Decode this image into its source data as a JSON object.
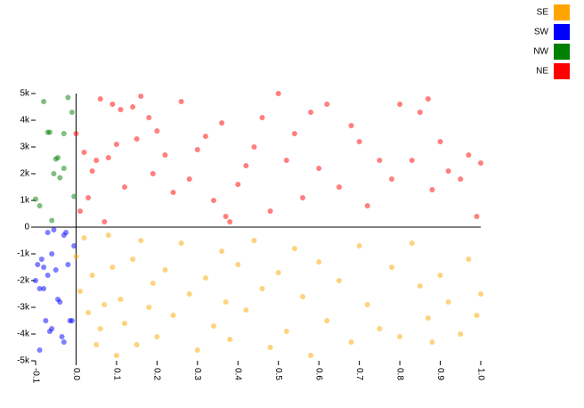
{
  "chart_data": {
    "type": "scatter",
    "xlim": [
      -0.1,
      1.0
    ],
    "xticks": [
      -0.1,
      {
        "value": 0,
        "label": "0.0"
      },
      0.1,
      0.2,
      0.3,
      0.4,
      0.5,
      0.6,
      0.7,
      0.8,
      0.9,
      {
        "value": 1,
        "label": "1.0"
      }
    ],
    "ylim": [
      -5000,
      5000
    ],
    "yticks": [
      {
        "value": -5000,
        "label": "-5k"
      },
      {
        "value": -4000,
        "label": "-4k"
      },
      {
        "value": -3000,
        "label": "-3k"
      },
      {
        "value": -2000,
        "label": "-2k"
      },
      {
        "value": -1000,
        "label": "-1k"
      },
      0,
      {
        "value": 1000,
        "label": "1k"
      },
      {
        "value": 2000,
        "label": "2k"
      },
      {
        "value": 3000,
        "label": "3k"
      },
      {
        "value": 4000,
        "label": "4k"
      },
      {
        "value": 5000,
        "label": "5k"
      }
    ],
    "series": [
      {
        "name": "SE",
        "color": "#ffa500",
        "x": [
          0.0,
          0.01,
          0.02,
          0.03,
          0.04,
          0.05,
          0.06,
          0.07,
          0.08,
          0.09,
          0.1,
          0.11,
          0.12,
          0.14,
          0.15,
          0.16,
          0.18,
          0.19,
          0.2,
          0.22,
          0.24,
          0.26,
          0.28,
          0.3,
          0.32,
          0.34,
          0.36,
          0.37,
          0.38,
          0.4,
          0.42,
          0.44,
          0.46,
          0.48,
          0.5,
          0.52,
          0.54,
          0.56,
          0.58,
          0.6,
          0.62,
          0.65,
          0.68,
          0.7,
          0.72,
          0.75,
          0.78,
          0.8,
          0.83,
          0.85,
          0.87,
          0.88,
          0.9,
          0.92,
          0.95,
          0.97,
          0.99,
          1.0
        ],
        "values": [
          -1100,
          -2400,
          -400,
          -3200,
          -1800,
          -4400,
          -3800,
          -2900,
          -300,
          -1500,
          -4800,
          -2700,
          -3600,
          -1200,
          -4400,
          -500,
          -3000,
          -2100,
          -4100,
          -1600,
          -3300,
          -600,
          -2500,
          -4600,
          -1900,
          -3700,
          -900,
          -2800,
          -4200,
          -1400,
          -3100,
          -500,
          -2300,
          -4500,
          -1700,
          -3900,
          -800,
          -2600,
          -4800,
          -1300,
          -3500,
          -2000,
          -4300,
          -700,
          -2900,
          -3800,
          -1500,
          -4100,
          -600,
          -2200,
          -3400,
          -4300,
          -1800,
          -2800,
          -4000,
          -1200,
          -3300,
          -2500
        ]
      },
      {
        "name": "SW",
        "color": "#0000ff",
        "x": [
          -0.1,
          -0.095,
          -0.09,
          -0.09,
          -0.085,
          -0.08,
          -0.08,
          -0.075,
          -0.07,
          -0.07,
          -0.065,
          -0.06,
          -0.055,
          -0.05,
          -0.045,
          -0.04,
          -0.035,
          -0.03,
          -0.025,
          -0.02,
          -0.015,
          -0.01,
          -0.005,
          -0.03,
          -0.06
        ],
        "values": [
          -2000,
          -1400,
          -2300,
          -4600,
          -1200,
          -2300,
          -1500,
          -3500,
          -1800,
          -200,
          -3900,
          -3800,
          -100,
          -1600,
          -2700,
          -2800,
          -4100,
          -4300,
          -200,
          -1400,
          -3500,
          -3500,
          -700,
          -300,
          -1000
        ]
      },
      {
        "name": "NW",
        "color": "#008000",
        "x": [
          -0.1,
          -0.09,
          -0.08,
          -0.07,
          -0.065,
          -0.06,
          -0.055,
          -0.05,
          -0.045,
          -0.04,
          -0.03,
          -0.03,
          -0.02,
          -0.01,
          -0.005
        ],
        "values": [
          1050,
          800,
          4700,
          3550,
          3550,
          250,
          2000,
          2550,
          2600,
          1850,
          3500,
          2200,
          4850,
          4300,
          1150
        ]
      },
      {
        "name": "NE",
        "color": "#ff0000",
        "x": [
          0.0,
          0.01,
          0.02,
          0.03,
          0.04,
          0.05,
          0.06,
          0.07,
          0.08,
          0.09,
          0.1,
          0.11,
          0.12,
          0.14,
          0.15,
          0.16,
          0.18,
          0.19,
          0.2,
          0.22,
          0.24,
          0.26,
          0.28,
          0.3,
          0.32,
          0.34,
          0.36,
          0.37,
          0.38,
          0.4,
          0.42,
          0.44,
          0.46,
          0.48,
          0.5,
          0.52,
          0.54,
          0.56,
          0.58,
          0.6,
          0.62,
          0.65,
          0.68,
          0.7,
          0.72,
          0.75,
          0.78,
          0.8,
          0.83,
          0.85,
          0.87,
          0.88,
          0.9,
          0.92,
          0.95,
          0.97,
          0.99,
          1.0
        ],
        "values": [
          3500,
          600,
          2800,
          1100,
          2100,
          2500,
          4800,
          200,
          2600,
          4600,
          3100,
          4400,
          1500,
          4500,
          3300,
          4900,
          4100,
          2000,
          3600,
          2700,
          1300,
          4700,
          1800,
          2900,
          3400,
          1000,
          3900,
          400,
          200,
          1600,
          2300,
          3000,
          4100,
          600,
          5000,
          2500,
          3500,
          1100,
          4300,
          2200,
          4600,
          1500,
          3800,
          3200,
          800,
          2500,
          1800,
          4600,
          2500,
          4300,
          4800,
          1400,
          3200,
          2100,
          1800,
          2700,
          400,
          2400
        ]
      }
    ]
  }
}
